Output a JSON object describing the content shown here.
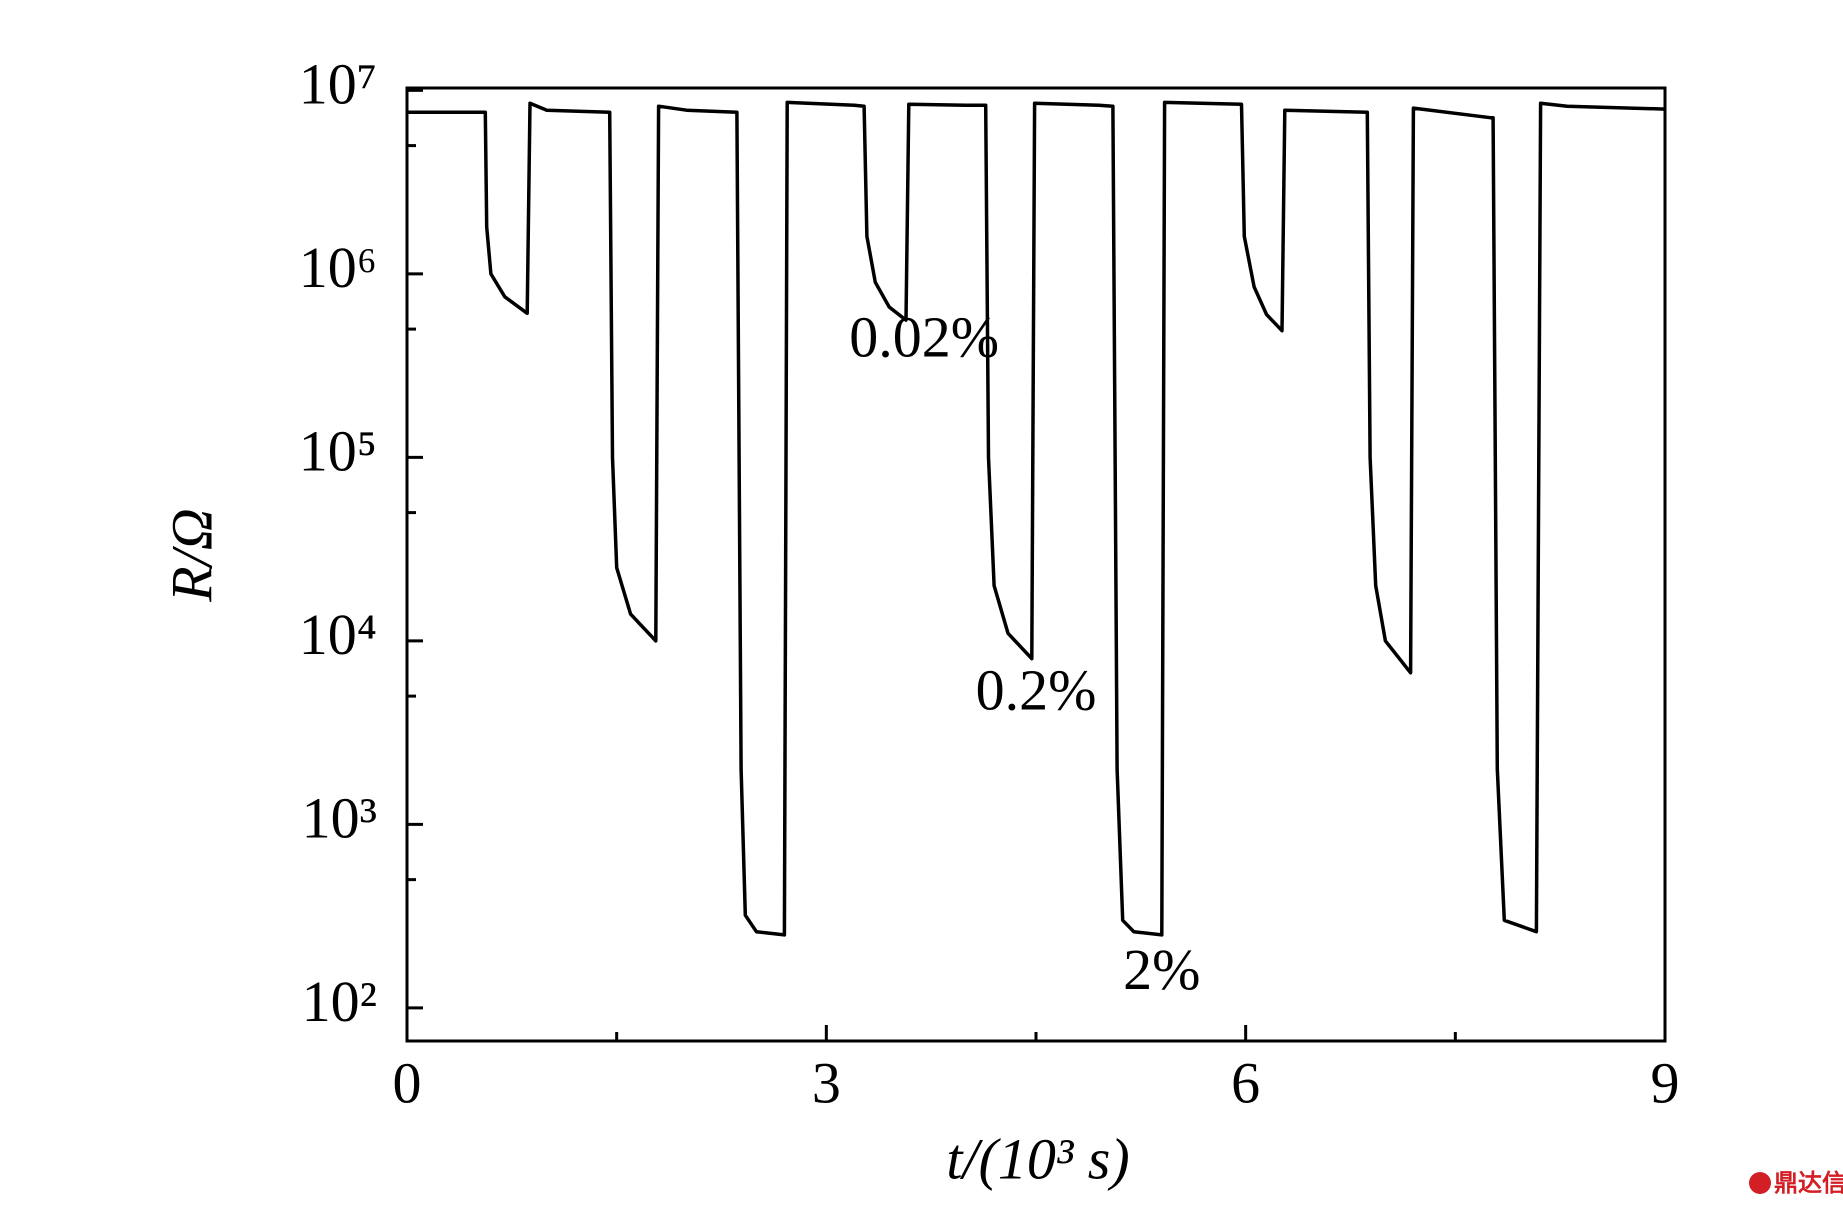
{
  "chart_data": {
    "type": "line",
    "x_label": "t/(10³ s)",
    "y_label": "R/Ω",
    "annotations": [
      {
        "text": "0.02%",
        "x": 3.7,
        "y": 420000
      },
      {
        "text": "0.2%",
        "x": 4.5,
        "y": 5000
      },
      {
        "text": "2%",
        "x": 5.4,
        "y": 150
      }
    ],
    "xlim": [
      0,
      9
    ],
    "xticks": [
      0,
      3,
      6,
      9
    ],
    "minor_xticks": [
      1.5,
      4.5,
      7.5
    ],
    "ylim": [
      66,
      10300000
    ],
    "log_y": true,
    "yticks": [
      {
        "value": 100,
        "label": "10²"
      },
      {
        "value": 1000,
        "label": "10³"
      },
      {
        "value": 10000,
        "label": "10⁴"
      },
      {
        "value": 100000,
        "label": "10⁵"
      },
      {
        "value": 1000000,
        "label": "10⁶"
      },
      {
        "value": 10000000,
        "label": "10⁷"
      }
    ],
    "minor_yticks": [
      500,
      5000,
      50000,
      500000,
      5000000
    ],
    "series": [
      {
        "color": "#000000",
        "x": [
          0,
          0.56,
          0.57,
          0.6,
          0.7,
          0.86,
          0.88,
          1.0,
          1.45,
          1.47,
          1.5,
          1.6,
          1.78,
          1.8,
          2.0,
          2.36,
          2.39,
          2.42,
          2.5,
          2.7,
          2.72,
          3.2,
          3.27,
          3.29,
          3.35,
          3.45,
          3.57,
          3.59,
          4.0,
          4.14,
          4.16,
          4.2,
          4.3,
          4.47,
          4.49,
          4.95,
          5.05,
          5.08,
          5.12,
          5.2,
          5.4,
          5.42,
          5.97,
          5.99,
          6.06,
          6.15,
          6.26,
          6.28,
          6.87,
          6.89,
          6.93,
          7.0,
          7.18,
          7.2,
          7.75,
          7.77,
          7.8,
          7.85,
          8.08,
          8.11,
          8.3,
          9.0
        ],
        "values": [
          7600000,
          7600000,
          1800000,
          1000000,
          750000,
          610000,
          8500000,
          7800000,
          7600000,
          100000,
          25000,
          14000,
          10000,
          8200000,
          7800000,
          7600000,
          2000,
          320,
          260,
          250,
          8600000,
          8300000,
          8200000,
          1600000,
          900000,
          660000,
          560000,
          8400000,
          8300000,
          8300000,
          100000,
          20000,
          11000,
          8000,
          8500000,
          8300000,
          8200000,
          2000,
          300,
          260,
          250,
          8600000,
          8400000,
          1600000,
          850000,
          600000,
          490000,
          7800000,
          7600000,
          100000,
          20000,
          10000,
          6700,
          8000000,
          7100000,
          7100000,
          2000,
          300,
          260,
          8500000,
          8200000,
          7900000
        ]
      }
    ],
    "watermark": "鼎达信"
  }
}
